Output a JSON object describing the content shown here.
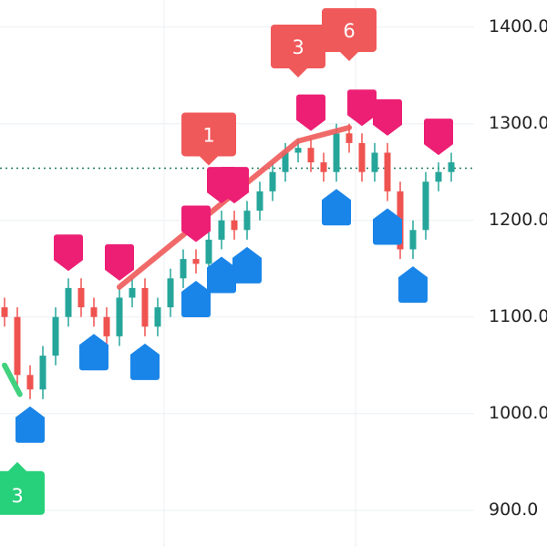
{
  "chart_data": {
    "type": "candlestick",
    "ylim": [
      862,
      1428
    ],
    "yticks": [
      {
        "value": 1400,
        "label": "1400.0"
      },
      {
        "value": 1300,
        "label": "1300.0"
      },
      {
        "value": 1200,
        "label": "1200.0"
      },
      {
        "value": 1100,
        "label": "1100.0"
      },
      {
        "value": 1000,
        "label": "1000.0"
      },
      {
        "value": 900,
        "label": "900.0"
      }
    ],
    "grid": true,
    "x_grid": [
      12.5,
      27.5
    ],
    "up_color": "#26a69a",
    "down_color": "#ef5350",
    "open": [
      1110,
      1100,
      1040,
      1025,
      1060,
      1100,
      1130,
      1110,
      1100,
      1080,
      1120,
      1130,
      1090,
      1110,
      1140,
      1160,
      1155,
      1180,
      1200,
      1190,
      1210,
      1230,
      1250,
      1270,
      1275,
      1260,
      1250,
      1290,
      1280,
      1250,
      1270,
      1230,
      1170,
      1190,
      1240,
      1250
    ],
    "high": [
      1120,
      1110,
      1050,
      1070,
      1110,
      1140,
      1140,
      1120,
      1110,
      1130,
      1140,
      1140,
      1120,
      1150,
      1170,
      1170,
      1190,
      1210,
      1210,
      1220,
      1240,
      1260,
      1280,
      1285,
      1285,
      1270,
      1300,
      1300,
      1290,
      1280,
      1280,
      1240,
      1200,
      1250,
      1260,
      1270
    ],
    "low": [
      1090,
      1030,
      1015,
      1015,
      1050,
      1090,
      1100,
      1090,
      1070,
      1070,
      1110,
      1080,
      1080,
      1100,
      1130,
      1145,
      1145,
      1170,
      1180,
      1180,
      1200,
      1220,
      1240,
      1260,
      1250,
      1240,
      1240,
      1270,
      1240,
      1240,
      1220,
      1160,
      1160,
      1180,
      1230,
      1240
    ],
    "close": [
      1100,
      1040,
      1025,
      1060,
      1100,
      1130,
      1110,
      1100,
      1080,
      1120,
      1130,
      1090,
      1110,
      1140,
      1160,
      1155,
      1180,
      1200,
      1190,
      1210,
      1230,
      1250,
      1270,
      1275,
      1260,
      1250,
      1290,
      1280,
      1250,
      1270,
      1230,
      1170,
      1190,
      1240,
      1250,
      1260
    ],
    "last_price": 1254,
    "last_price_color": "#1f7a5c",
    "sell_signals": [
      5,
      9,
      15,
      17,
      18,
      24,
      28,
      30,
      34
    ],
    "sell_color": "#ec1f74",
    "buy_signals": [
      2,
      7,
      11,
      15,
      17,
      19,
      26,
      30,
      32
    ],
    "buy_color": "#1a85e8",
    "trend_lines": [
      {
        "color": "#f05a5a",
        "points": [
          [
            9,
            1131
          ],
          [
            23,
            1282
          ],
          [
            27,
            1296
          ]
        ]
      },
      {
        "color": "#2ecc71",
        "points": [
          [
            0,
            1050
          ],
          [
            1.2,
            1020
          ]
        ]
      }
    ],
    "badges": [
      {
        "label": "1",
        "x": 16,
        "price": 1287,
        "color": "#f0595a",
        "dir": "down"
      },
      {
        "label": "3",
        "x": 23,
        "price": 1378,
        "color": "#f0595a",
        "dir": "down"
      },
      {
        "label": "6",
        "x": 27,
        "price": 1395,
        "color": "#f0595a",
        "dir": "down"
      },
      {
        "label": "3",
        "x": 1,
        "price": 916,
        "color": "#27d07a",
        "dir": "up"
      }
    ]
  }
}
